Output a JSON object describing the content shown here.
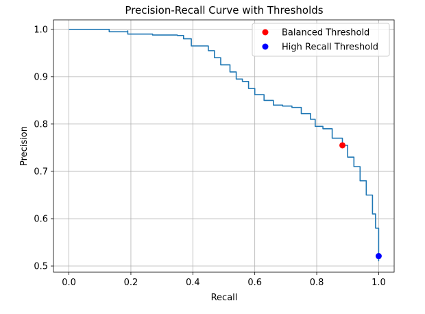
{
  "chart_data": {
    "type": "line",
    "title": "Precision-Recall Curve with Thresholds",
    "xlabel": "Recall",
    "ylabel": "Precision",
    "xlim": [
      -0.05,
      1.05
    ],
    "ylim": [
      0.487,
      1.02
    ],
    "xticks": [
      0.0,
      0.2,
      0.4,
      0.6,
      0.8,
      1.0
    ],
    "xtick_labels": [
      "0.0",
      "0.2",
      "0.4",
      "0.6",
      "0.8",
      "1.0"
    ],
    "yticks": [
      0.5,
      0.6,
      0.7,
      0.8,
      0.9,
      1.0
    ],
    "ytick_labels": [
      "0.5",
      "0.6",
      "0.7",
      "0.8",
      "0.9",
      "1.0"
    ],
    "grid": true,
    "legend_position": "top-right",
    "curve": {
      "color": "#1f77b4",
      "x": [
        0.0,
        0.13,
        0.13,
        0.19,
        0.19,
        0.24,
        0.27,
        0.35,
        0.37,
        0.395,
        0.405,
        0.45,
        0.47,
        0.49,
        0.52,
        0.54,
        0.56,
        0.58,
        0.6,
        0.63,
        0.66,
        0.69,
        0.72,
        0.75,
        0.78,
        0.795,
        0.82,
        0.85,
        0.883,
        0.9,
        0.92,
        0.94,
        0.96,
        0.98,
        0.99,
        1.0,
        1.0
      ],
      "y": [
        1.0,
        1.0,
        0.995,
        0.997,
        0.99,
        0.99,
        0.988,
        0.987,
        0.98,
        0.965,
        0.965,
        0.955,
        0.94,
        0.925,
        0.91,
        0.895,
        0.89,
        0.875,
        0.862,
        0.85,
        0.84,
        0.838,
        0.835,
        0.822,
        0.81,
        0.795,
        0.79,
        0.77,
        0.755,
        0.73,
        0.71,
        0.68,
        0.65,
        0.61,
        0.58,
        0.545,
        0.51
      ]
    },
    "points": [
      {
        "name": "Balanced Threshold",
        "x": 0.883,
        "y": 0.755,
        "color": "#ff0000"
      },
      {
        "name": "High Recall Threshold",
        "x": 1.0,
        "y": 0.521,
        "color": "#0000ff"
      }
    ]
  }
}
